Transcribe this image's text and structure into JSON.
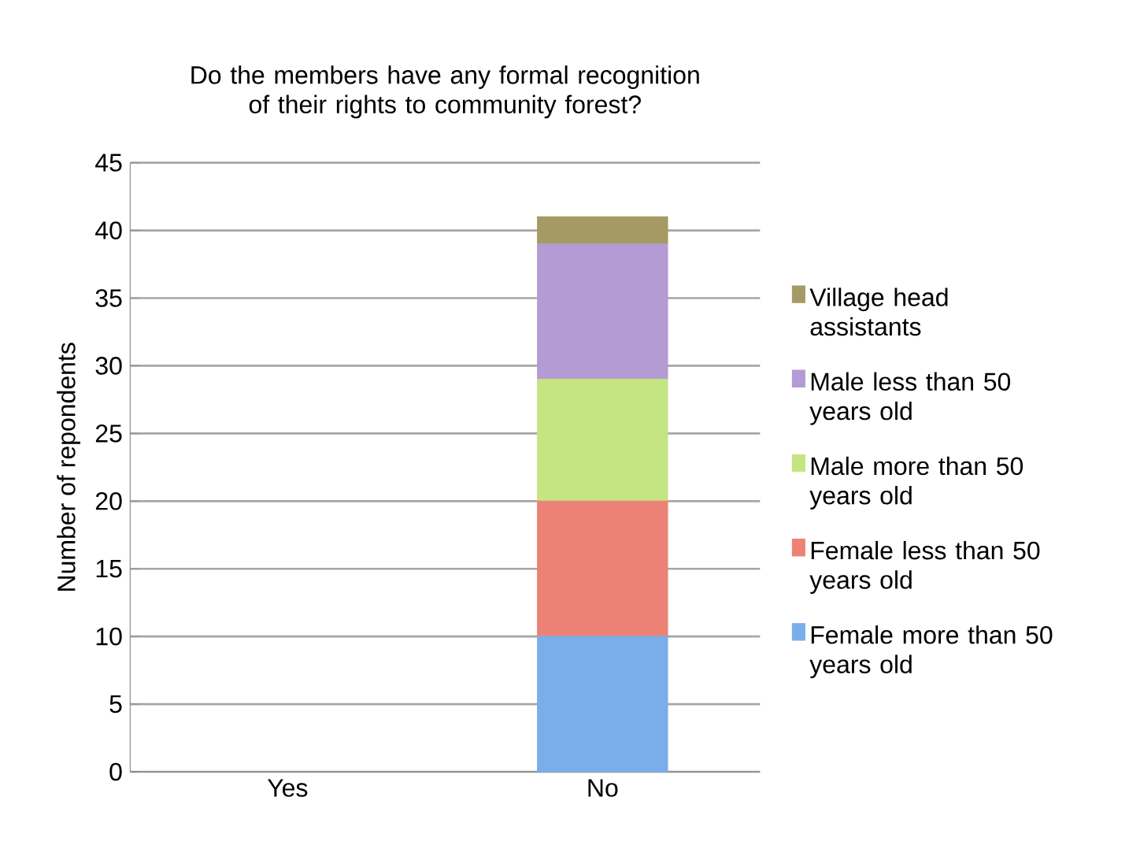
{
  "chart_data": {
    "type": "bar",
    "stacked": true,
    "title": "Do the members have any formal recognition of their rights to community forest?",
    "ylabel": "Number of repondents",
    "categories": [
      "Yes",
      "No"
    ],
    "series": [
      {
        "name": "Female more than 50 years old",
        "color": "#79aeea",
        "values": [
          0,
          10
        ]
      },
      {
        "name": "Female less than 50 years old",
        "color": "#ec8276",
        "values": [
          0,
          10
        ]
      },
      {
        "name": "Male more than 50 years old",
        "color": "#c5e482",
        "values": [
          0,
          9
        ]
      },
      {
        "name": "Male less than 50 years old",
        "color": "#b49bd4",
        "values": [
          0,
          10
        ]
      },
      {
        "name": "Village head assistants",
        "color": "#a59a64",
        "values": [
          0,
          2
        ]
      }
    ],
    "ylim": [
      0,
      45
    ],
    "yticks": [
      0,
      5,
      10,
      15,
      20,
      25,
      30,
      35,
      40,
      45
    ],
    "grid": "y",
    "legend": "right"
  }
}
